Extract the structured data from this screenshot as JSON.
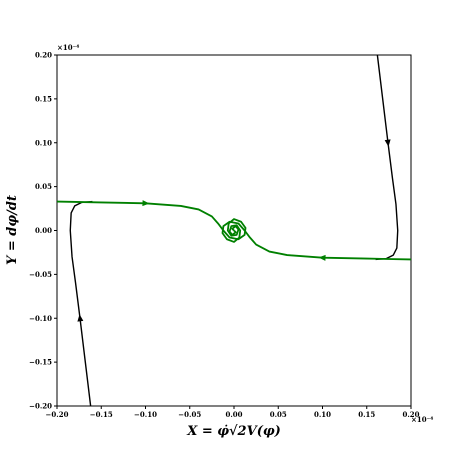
{
  "chart_data": {
    "type": "line",
    "x_label": "X = φ̇√2V(φ)",
    "y_label": "Y = dφ/dt",
    "x_offset_label": "×10⁻⁴",
    "y_offset_label": "×10⁻⁴",
    "xlim": [
      -0.2,
      0.2
    ],
    "ylim": [
      -0.2,
      0.2
    ],
    "xticks": [
      {
        "value": -0.2,
        "label": "−0.20"
      },
      {
        "value": -0.15,
        "label": "−0.15"
      },
      {
        "value": -0.1,
        "label": "−0.10"
      },
      {
        "value": -0.05,
        "label": "−0.05"
      },
      {
        "value": 0,
        "label": "0.00"
      },
      0.05,
      {
        "value": 0.1,
        "label": "0.10"
      },
      0.15,
      {
        "value": 0.2,
        "label": "0.20"
      }
    ],
    "yticks": [
      {
        "value": -0.2,
        "label": "−0.20"
      },
      {
        "value": -0.15,
        "label": "−0.15"
      },
      {
        "value": -0.1,
        "label": "−0.10"
      },
      {
        "value": -0.05,
        "label": "−0.05"
      },
      {
        "value": 0,
        "label": "0.00"
      },
      0.05,
      {
        "value": 0.1,
        "label": "0.10"
      },
      0.15,
      {
        "value": 0.2,
        "label": "0.20"
      }
    ],
    "series": [
      {
        "color": "#000000",
        "x": [
          0.162,
          0.168,
          0.174,
          0.179,
          0.183,
          0.185,
          0.184,
          0.18,
          0.172,
          0.16
        ],
        "y": [
          0.2,
          0.15,
          0.1,
          0.06,
          0.03,
          0.0,
          -0.02,
          -0.028,
          -0.032,
          -0.033
        ]
      },
      {
        "color": "#000000",
        "x": [
          -0.162,
          -0.168,
          -0.174,
          -0.179,
          -0.183,
          -0.185,
          -0.184,
          -0.18,
          -0.172,
          -0.16
        ],
        "y": [
          -0.2,
          -0.15,
          -0.1,
          -0.06,
          -0.03,
          0.0,
          0.02,
          0.028,
          0.032,
          0.033
        ]
      },
      {
        "color": "#008000",
        "x": [
          -0.2,
          -0.15,
          -0.1,
          -0.06,
          -0.04,
          -0.025,
          -0.018,
          -0.012,
          -0.005,
          0.005,
          0.012,
          0.013,
          0.008,
          0.0,
          -0.006,
          -0.007,
          -0.003,
          0.003,
          0.005,
          0.002,
          -0.002,
          0.0
        ],
        "y": [
          0.033,
          0.032,
          0.031,
          0.028,
          0.024,
          0.016,
          0.008,
          0.0,
          -0.008,
          -0.01,
          -0.005,
          0.003,
          0.01,
          0.013,
          0.008,
          0.0,
          -0.006,
          -0.005,
          0.001,
          0.005,
          0.002,
          0.0
        ]
      },
      {
        "color": "#008000",
        "x": [
          0.2,
          0.15,
          0.1,
          0.06,
          0.04,
          0.025,
          0.018,
          0.012,
          0.005,
          -0.005,
          -0.012,
          -0.013,
          -0.008,
          0.0,
          0.006,
          0.007,
          0.003,
          -0.003,
          -0.005,
          -0.002,
          0.002,
          0.0
        ],
        "y": [
          -0.033,
          -0.032,
          -0.031,
          -0.028,
          -0.024,
          -0.016,
          -0.008,
          0.0,
          0.008,
          0.01,
          0.005,
          -0.003,
          -0.01,
          -0.013,
          -0.008,
          0.0,
          0.006,
          0.005,
          -0.001,
          -0.005,
          -0.002,
          0.0
        ]
      }
    ]
  }
}
